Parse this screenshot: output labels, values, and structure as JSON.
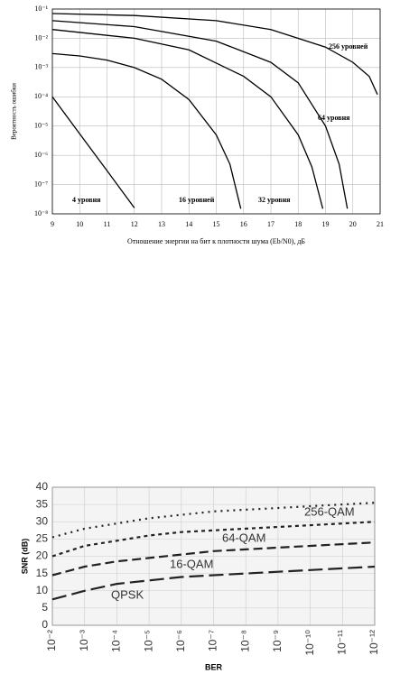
{
  "chart_data": [
    {
      "type": "line",
      "x_label": "Отношение энергии на бит к плотности шума (Eb/N0), дБ",
      "y_label": "Вероятность ошибки",
      "log_y": true,
      "log_x": false,
      "grid": true,
      "xlim": [
        9,
        21
      ],
      "xticks": [
        9,
        10,
        11,
        12,
        13,
        14,
        15,
        16,
        17,
        18,
        19,
        20,
        21
      ],
      "ylim": [
        1e-08,
        0.1
      ],
      "yticks": [
        {
          "value": 1e-08,
          "label": "10⁻⁸"
        },
        {
          "value": 1e-07,
          "label": "10⁻⁷"
        },
        {
          "value": 1e-06,
          "label": "10⁻⁶"
        },
        {
          "value": 1e-05,
          "label": "10⁻⁵"
        },
        {
          "value": 0.0001,
          "label": "10⁻⁴"
        },
        {
          "value": 0.001,
          "label": "10⁻³"
        },
        {
          "value": 0.01,
          "label": "10⁻²"
        },
        {
          "value": 0.1,
          "label": "10⁻¹"
        }
      ],
      "series": [
        {
          "name": "4 уровня",
          "color": "#000000",
          "x": [
            9,
            10,
            11,
            12
          ],
          "values": [
            0.0001,
            5.4e-06,
            3e-07,
            1.6e-08
          ]
        },
        {
          "name": "16 уровней",
          "color": "#000000",
          "x": [
            9,
            10,
            11,
            12,
            13,
            14,
            15,
            15.5,
            15.9
          ],
          "values": [
            0.003,
            0.0025,
            0.0018,
            0.001,
            0.0004,
            8e-05,
            5e-06,
            5e-07,
            1.5e-08
          ]
        },
        {
          "name": "32 уровня",
          "color": "#000000",
          "x": [
            9,
            12,
            14,
            16,
            17,
            18,
            18.5,
            18.9
          ],
          "values": [
            0.02,
            0.01,
            0.004,
            0.0005,
            0.0001,
            5e-06,
            4e-07,
            1.5e-08
          ]
        },
        {
          "name": "64 уровня",
          "color": "#000000",
          "x": [
            9,
            12,
            15,
            17,
            18,
            19,
            19.5,
            19.8
          ],
          "values": [
            0.04,
            0.025,
            0.008,
            0.0015,
            0.0003,
            1e-05,
            5e-07,
            1.5e-08
          ]
        },
        {
          "name": "256 уровней",
          "color": "#000000",
          "x": [
            9,
            12,
            15,
            17,
            19,
            20,
            20.6,
            20.9
          ],
          "values": [
            0.07,
            0.06,
            0.04,
            0.02,
            0.005,
            0.0015,
            0.0005,
            0.00012
          ]
        }
      ]
    },
    {
      "type": "line",
      "x_label": "BER",
      "y_label": "SNR (dB)",
      "log_x": true,
      "log_y": false,
      "grid": true,
      "x": [
        0.01,
        0.001,
        0.0001,
        1e-05,
        1e-06,
        1e-07,
        1e-08,
        1e-09,
        1e-10,
        1e-11,
        1e-12
      ],
      "xlim": [
        0.01,
        1e-12
      ],
      "xticks": [
        {
          "value": 0.01,
          "label": "10⁻²"
        },
        {
          "value": 0.001,
          "label": "10⁻³"
        },
        {
          "value": 0.0001,
          "label": "10⁻⁴"
        },
        {
          "value": 1e-05,
          "label": "10⁻⁵"
        },
        {
          "value": 1e-06,
          "label": "10⁻⁶"
        },
        {
          "value": 1e-07,
          "label": "10⁻⁷"
        },
        {
          "value": 1e-08,
          "label": "10⁻⁸"
        },
        {
          "value": 1e-09,
          "label": "10⁻⁹"
        },
        {
          "value": 1e-10,
          "label": "10⁻¹⁰"
        },
        {
          "value": 1e-11,
          "label": "10⁻¹¹"
        },
        {
          "value": 1e-12,
          "label": "10⁻¹²"
        }
      ],
      "ylim": [
        0,
        40
      ],
      "yticks": [
        0,
        5,
        10,
        15,
        20,
        25,
        30,
        35,
        40
      ],
      "series": [
        {
          "name": "256-QAM",
          "color": "#222222",
          "dash": "2,5",
          "values": [
            25.5,
            28,
            29.5,
            31,
            32,
            33,
            33.5,
            34,
            34.5,
            35,
            35.5
          ]
        },
        {
          "name": "64-QAM",
          "color": "#222222",
          "dash": "4,4",
          "values": [
            20,
            23,
            24.5,
            26,
            27,
            27.5,
            28,
            28.5,
            29,
            29.5,
            30
          ]
        },
        {
          "name": "16-QAM",
          "color": "#222222",
          "dash": "10,5",
          "values": [
            14.5,
            17,
            18.5,
            19.5,
            20.5,
            21.5,
            22,
            22.5,
            23,
            23.5,
            24
          ]
        },
        {
          "name": "QPSK",
          "color": "#222222",
          "dash": "16,6",
          "values": [
            7.5,
            10,
            12,
            13,
            14,
            14.5,
            15,
            15.5,
            16,
            16.5,
            17
          ]
        }
      ]
    }
  ]
}
